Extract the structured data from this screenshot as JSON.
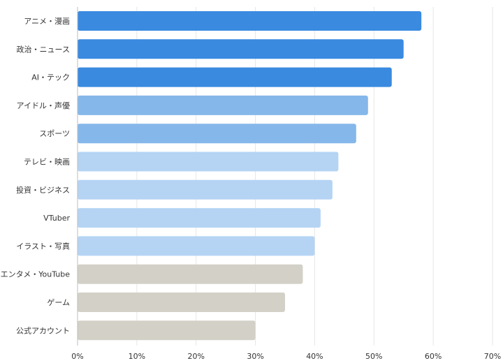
{
  "chart_data": {
    "type": "bar",
    "orientation": "horizontal",
    "title": "",
    "xlabel": "",
    "ylabel": "",
    "xlim": [
      0,
      70
    ],
    "x_ticks": [
      0,
      10,
      20,
      30,
      40,
      50,
      60,
      70
    ],
    "tick_suffix": "%",
    "grid": true,
    "categories": [
      "アニメ・漫画",
      "政治・ニュース",
      "AI・テック",
      "アイドル・声優",
      "スポーツ",
      "テレビ・映画",
      "投資・ビジネス",
      "VTuber",
      "イラスト・写真",
      "エンタメ・YouTube",
      "ゲーム",
      "公式アカウント"
    ],
    "values": [
      58,
      55,
      53,
      49,
      47,
      44,
      43,
      41,
      40,
      38,
      35,
      30
    ],
    "colors": [
      "#3a8ae0",
      "#3a8ae0",
      "#3a8ae0",
      "#85b7ea",
      "#85b7ea",
      "#b5d4f4",
      "#b5d4f4",
      "#b5d4f4",
      "#b5d4f4",
      "#d3d1c7",
      "#d3d1c7",
      "#d3d1c7"
    ]
  }
}
